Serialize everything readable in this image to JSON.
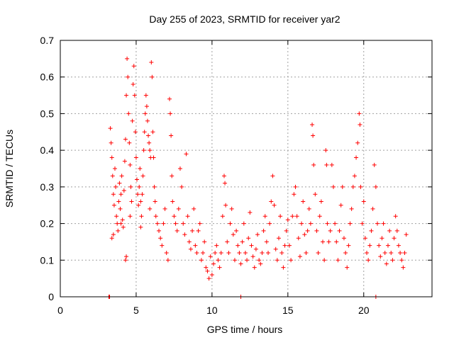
{
  "chart_data": {
    "type": "scatter",
    "title": "Day 255 of 2023, SRMTID for receiver yar2",
    "xlabel": "GPS time / hours",
    "ylabel": "SRMTID / TECUs",
    "xlim": [
      0,
      24.5
    ],
    "ylim": [
      0,
      0.7
    ],
    "xticks": [
      0,
      5,
      10,
      15,
      20
    ],
    "xtick_labels": [
      "0",
      "5",
      "10",
      "15",
      "20"
    ],
    "yticks": [
      0,
      0.1,
      0.2,
      0.3,
      0.4,
      0.5,
      0.6,
      0.7
    ],
    "ytick_labels": [
      "0",
      "0.1",
      "0.2",
      "0.3",
      "0.4",
      "0.5",
      "0.6",
      "0.7"
    ],
    "grid": true,
    "legend": "none",
    "marker": "+",
    "color": "#ff0000",
    "series": [
      {
        "name": "SRMTID",
        "points": [
          [
            3.2,
            0.0
          ],
          [
            3.25,
            0.0
          ],
          [
            11.9,
            0.0
          ],
          [
            20.8,
            0.0
          ],
          [
            3.3,
            0.46
          ],
          [
            3.35,
            0.42
          ],
          [
            3.4,
            0.38
          ],
          [
            3.45,
            0.33
          ],
          [
            3.5,
            0.28
          ],
          [
            3.55,
            0.25
          ],
          [
            3.6,
            0.35
          ],
          [
            3.65,
            0.3
          ],
          [
            3.7,
            0.22
          ],
          [
            3.75,
            0.2
          ],
          [
            3.8,
            0.18
          ],
          [
            3.85,
            0.26
          ],
          [
            3.9,
            0.31
          ],
          [
            3.95,
            0.24
          ],
          [
            4.0,
            0.28
          ],
          [
            4.05,
            0.33
          ],
          [
            4.1,
            0.21
          ],
          [
            4.15,
            0.19
          ],
          [
            4.2,
            0.29
          ],
          [
            4.25,
            0.37
          ],
          [
            4.3,
            0.43
          ],
          [
            4.35,
            0.55
          ],
          [
            4.4,
            0.65
          ],
          [
            4.45,
            0.6
          ],
          [
            4.5,
            0.5
          ],
          [
            4.55,
            0.42
          ],
          [
            4.6,
            0.36
          ],
          [
            4.65,
            0.3
          ],
          [
            4.7,
            0.26
          ],
          [
            4.75,
            0.48
          ],
          [
            4.8,
            0.58
          ],
          [
            4.85,
            0.63
          ],
          [
            4.9,
            0.55
          ],
          [
            4.95,
            0.45
          ],
          [
            5.0,
            0.38
          ],
          [
            5.05,
            0.32
          ],
          [
            5.1,
            0.28
          ],
          [
            5.15,
            0.25
          ],
          [
            5.2,
            0.3
          ],
          [
            5.25,
            0.35
          ],
          [
            5.3,
            0.26
          ],
          [
            5.35,
            0.22
          ],
          [
            5.4,
            0.28
          ],
          [
            5.45,
            0.33
          ],
          [
            5.5,
            0.4
          ],
          [
            5.55,
            0.45
          ],
          [
            5.6,
            0.5
          ],
          [
            5.65,
            0.55
          ],
          [
            5.7,
            0.52
          ],
          [
            5.75,
            0.48
          ],
          [
            5.8,
            0.44
          ],
          [
            5.85,
            0.42
          ],
          [
            5.9,
            0.4
          ],
          [
            5.95,
            0.38
          ],
          [
            6.0,
            0.64
          ],
          [
            6.05,
            0.6
          ],
          [
            6.1,
            0.45
          ],
          [
            6.15,
            0.38
          ],
          [
            6.2,
            0.3
          ],
          [
            6.25,
            0.26
          ],
          [
            4.3,
            0.1
          ],
          [
            4.35,
            0.11
          ],
          [
            3.4,
            0.16
          ],
          [
            3.5,
            0.17
          ],
          [
            4.0,
            0.2
          ],
          [
            4.6,
            0.22
          ],
          [
            5.3,
            0.19
          ],
          [
            5.9,
            0.24
          ],
          [
            6.3,
            0.22
          ],
          [
            6.4,
            0.2
          ],
          [
            6.5,
            0.18
          ],
          [
            6.6,
            0.16
          ],
          [
            6.7,
            0.14
          ],
          [
            6.8,
            0.2
          ],
          [
            6.9,
            0.24
          ],
          [
            7.0,
            0.12
          ],
          [
            7.1,
            0.1
          ],
          [
            7.2,
            0.54
          ],
          [
            7.25,
            0.5
          ],
          [
            7.3,
            0.44
          ],
          [
            7.35,
            0.33
          ],
          [
            7.4,
            0.26
          ],
          [
            7.5,
            0.22
          ],
          [
            7.6,
            0.2
          ],
          [
            7.7,
            0.18
          ],
          [
            7.8,
            0.24
          ],
          [
            7.9,
            0.35
          ],
          [
            8.0,
            0.3
          ],
          [
            8.1,
            0.2
          ],
          [
            8.2,
            0.17
          ],
          [
            8.3,
            0.39
          ],
          [
            8.4,
            0.22
          ],
          [
            8.5,
            0.15
          ],
          [
            8.6,
            0.13
          ],
          [
            8.7,
            0.18
          ],
          [
            8.8,
            0.24
          ],
          [
            8.9,
            0.14
          ],
          [
            9.0,
            0.12
          ],
          [
            9.1,
            0.18
          ],
          [
            9.2,
            0.2
          ],
          [
            9.3,
            0.1
          ],
          [
            9.4,
            0.12
          ],
          [
            9.5,
            0.15
          ],
          [
            9.6,
            0.08
          ],
          [
            9.7,
            0.07
          ],
          [
            9.8,
            0.05
          ],
          [
            9.9,
            0.11
          ],
          [
            10.0,
            0.06
          ],
          [
            10.1,
            0.09
          ],
          [
            10.2,
            0.12
          ],
          [
            10.3,
            0.14
          ],
          [
            10.4,
            0.1
          ],
          [
            10.5,
            0.08
          ],
          [
            10.6,
            0.12
          ],
          [
            10.7,
            0.22
          ],
          [
            10.8,
            0.33
          ],
          [
            10.85,
            0.31
          ],
          [
            10.9,
            0.25
          ],
          [
            11.0,
            0.15
          ],
          [
            11.1,
            0.12
          ],
          [
            11.2,
            0.2
          ],
          [
            11.3,
            0.24
          ],
          [
            11.4,
            0.17
          ],
          [
            11.5,
            0.1
          ],
          [
            11.6,
            0.18
          ],
          [
            11.7,
            0.14
          ],
          [
            11.8,
            0.12
          ],
          [
            11.9,
            0.09
          ],
          [
            12.0,
            0.15
          ],
          [
            12.1,
            0.2
          ],
          [
            12.2,
            0.12
          ],
          [
            12.3,
            0.1
          ],
          [
            12.4,
            0.16
          ],
          [
            12.5,
            0.23
          ],
          [
            12.6,
            0.14
          ],
          [
            12.7,
            0.11
          ],
          [
            12.8,
            0.08
          ],
          [
            12.9,
            0.13
          ],
          [
            13.0,
            0.17
          ],
          [
            13.1,
            0.1
          ],
          [
            13.2,
            0.09
          ],
          [
            13.3,
            0.12
          ],
          [
            13.4,
            0.18
          ],
          [
            13.5,
            0.22
          ],
          [
            13.6,
            0.15
          ],
          [
            13.7,
            0.12
          ],
          [
            13.8,
            0.2
          ],
          [
            13.9,
            0.26
          ],
          [
            14.0,
            0.33
          ],
          [
            14.1,
            0.25
          ],
          [
            14.2,
            0.13
          ],
          [
            14.3,
            0.1
          ],
          [
            14.4,
            0.16
          ],
          [
            14.5,
            0.22
          ],
          [
            14.6,
            0.12
          ],
          [
            14.7,
            0.08
          ],
          [
            14.8,
            0.14
          ],
          [
            14.9,
            0.18
          ],
          [
            15.0,
            0.21
          ],
          [
            15.1,
            0.14
          ],
          [
            15.2,
            0.1
          ],
          [
            15.3,
            0.22
          ],
          [
            15.4,
            0.28
          ],
          [
            15.5,
            0.3
          ],
          [
            15.6,
            0.22
          ],
          [
            15.7,
            0.16
          ],
          [
            15.8,
            0.11
          ],
          [
            15.9,
            0.2
          ],
          [
            16.0,
            0.26
          ],
          [
            16.1,
            0.17
          ],
          [
            16.2,
            0.12
          ],
          [
            16.3,
            0.18
          ],
          [
            16.4,
            0.24
          ],
          [
            16.5,
            0.2
          ],
          [
            16.6,
            0.47
          ],
          [
            16.65,
            0.44
          ],
          [
            16.7,
            0.36
          ],
          [
            16.8,
            0.28
          ],
          [
            16.9,
            0.18
          ],
          [
            17.0,
            0.12
          ],
          [
            17.1,
            0.22
          ],
          [
            17.2,
            0.26
          ],
          [
            17.3,
            0.15
          ],
          [
            17.4,
            0.1
          ],
          [
            17.5,
            0.4
          ],
          [
            17.55,
            0.36
          ],
          [
            17.6,
            0.2
          ],
          [
            17.7,
            0.15
          ],
          [
            17.8,
            0.18
          ],
          [
            17.9,
            0.36
          ],
          [
            18.0,
            0.3
          ],
          [
            18.1,
            0.2
          ],
          [
            18.2,
            0.15
          ],
          [
            18.3,
            0.1
          ],
          [
            18.4,
            0.18
          ],
          [
            18.5,
            0.25
          ],
          [
            18.6,
            0.3
          ],
          [
            18.7,
            0.16
          ],
          [
            18.8,
            0.12
          ],
          [
            18.9,
            0.08
          ],
          [
            19.0,
            0.14
          ],
          [
            19.1,
            0.2
          ],
          [
            19.2,
            0.24
          ],
          [
            19.3,
            0.3
          ],
          [
            19.4,
            0.33
          ],
          [
            19.5,
            0.38
          ],
          [
            19.6,
            0.42
          ],
          [
            19.7,
            0.5
          ],
          [
            19.75,
            0.47
          ],
          [
            19.8,
            0.3
          ],
          [
            19.9,
            0.2
          ],
          [
            20.0,
            0.26
          ],
          [
            20.1,
            0.16
          ],
          [
            20.2,
            0.12
          ],
          [
            20.3,
            0.1
          ],
          [
            20.4,
            0.14
          ],
          [
            20.5,
            0.18
          ],
          [
            20.6,
            0.24
          ],
          [
            20.7,
            0.36
          ],
          [
            20.8,
            0.3
          ],
          [
            20.9,
            0.2
          ],
          [
            21.0,
            0.14
          ],
          [
            21.1,
            0.11
          ],
          [
            21.2,
            0.16
          ],
          [
            21.3,
            0.2
          ],
          [
            21.4,
            0.12
          ],
          [
            21.5,
            0.09
          ],
          [
            21.6,
            0.14
          ],
          [
            21.7,
            0.18
          ],
          [
            21.8,
            0.12
          ],
          [
            21.9,
            0.1
          ],
          [
            22.0,
            0.16
          ],
          [
            22.1,
            0.22
          ],
          [
            22.2,
            0.18
          ],
          [
            22.3,
            0.14
          ],
          [
            22.4,
            0.12
          ],
          [
            22.5,
            0.1
          ],
          [
            22.6,
            0.08
          ],
          [
            22.7,
            0.12
          ],
          [
            22.8,
            0.17
          ]
        ]
      }
    ]
  }
}
